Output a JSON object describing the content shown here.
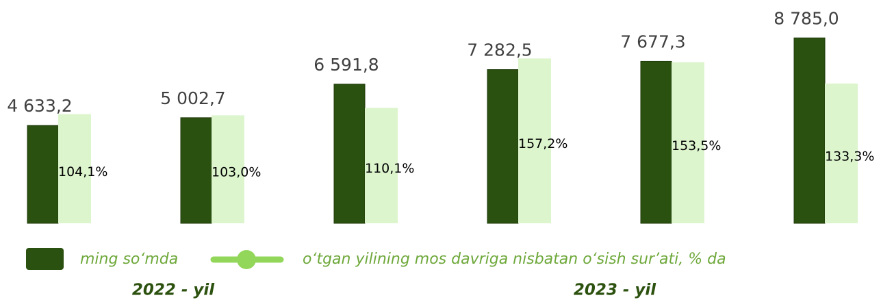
{
  "chart_data": {
    "type": "bar",
    "categories": [
      null,
      null,
      null,
      null,
      null,
      null
    ],
    "series": [
      {
        "name": "ming so‘mda",
        "color": "#2b5110",
        "values": [
          4633.2,
          5002.7,
          6591.8,
          7282.5,
          7677.3,
          8785.0
        ],
        "value_labels": [
          "4 633,2",
          "5 002,7",
          "6 591,8",
          "7 282,5",
          "7 677,3",
          "8 785,0"
        ]
      },
      {
        "name": "o‘tgan yilining mos davriga nisbatan o‘sish sur’ati, % da",
        "color": "#dcf5cd",
        "axis": "y2",
        "values": [
          104.1,
          103.0,
          110.1,
          157.2,
          153.5,
          133.3
        ],
        "value_labels": [
          "104,1%",
          "103,0%",
          "110,1%",
          "157,2%",
          "153,5%",
          "133,3%"
        ]
      }
    ],
    "ylim": [
      0,
      10580
    ],
    "y2lim": [
      0,
      213
    ],
    "annotations": [
      "2022 - yil",
      "2023 - yil"
    ]
  }
}
